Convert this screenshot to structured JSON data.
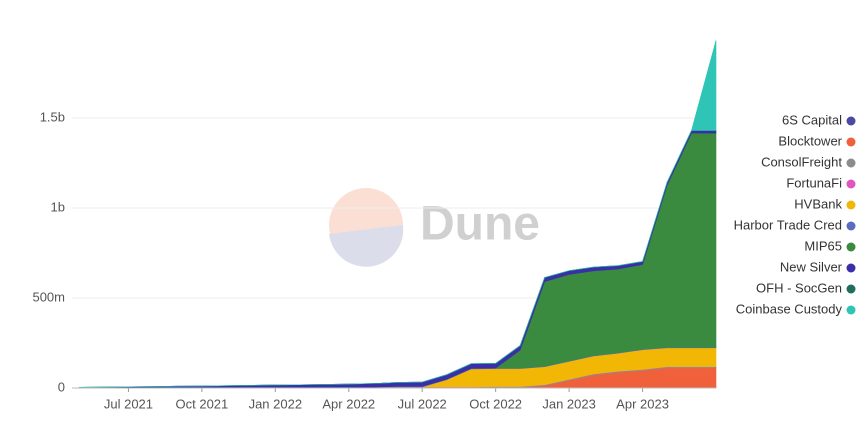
{
  "chart_data": {
    "type": "stacked-area",
    "watermark": "Dune",
    "x": [
      "2021-05",
      "2021-06",
      "2021-07",
      "2021-08",
      "2021-09",
      "2021-10",
      "2021-11",
      "2021-12",
      "2022-01",
      "2022-02",
      "2022-03",
      "2022-04",
      "2022-05",
      "2022-06",
      "2022-07",
      "2022-08",
      "2022-09",
      "2022-10",
      "2022-11",
      "2022-12",
      "2023-01",
      "2023-02",
      "2023-03",
      "2023-04",
      "2023-05",
      "2023-06",
      "2023-07"
    ],
    "xlim": [
      "2021-04",
      "2023-07"
    ],
    "xticks": [
      {
        "value": "2021-07",
        "label": "Jul 2021"
      },
      {
        "value": "2021-10",
        "label": "Oct 2021"
      },
      {
        "value": "2022-01",
        "label": "Jan 2022"
      },
      {
        "value": "2022-04",
        "label": "Apr 2022"
      },
      {
        "value": "2022-07",
        "label": "Jul 2022"
      },
      {
        "value": "2022-10",
        "label": "Oct 2022"
      },
      {
        "value": "2023-01",
        "label": "Jan 2023"
      },
      {
        "value": "2023-04",
        "label": "Apr 2023"
      }
    ],
    "ylim": [
      0,
      2000000000
    ],
    "yticks": [
      0,
      {
        "value": 500000000,
        "label": "500m"
      },
      {
        "value": 1000000000,
        "label": "1b"
      },
      {
        "value": 1500000000,
        "label": "1.5b"
      }
    ],
    "grid": true,
    "legend": "right",
    "series": [
      {
        "name": "6S Capital",
        "color": "#4b4aa3",
        "values": [
          0,
          0,
          0,
          0,
          0,
          0,
          0,
          0,
          0,
          0,
          0,
          0,
          0,
          0,
          0,
          0,
          0,
          2000000,
          2000000,
          2000000,
          2000000,
          2000000,
          2000000,
          2000000,
          2000000,
          2000000,
          2000000
        ]
      },
      {
        "name": "Blocktower",
        "color": "#f0603a",
        "values": [
          0,
          0,
          0,
          0,
          0,
          0,
          0,
          0,
          0,
          0,
          0,
          0,
          0,
          0,
          0,
          0,
          0,
          0,
          0,
          10000000,
          40000000,
          70000000,
          85000000,
          95000000,
          110000000,
          110000000,
          110000000
        ]
      },
      {
        "name": "ConsolFreight",
        "color": "#8c8c8c",
        "values": [
          2000000,
          2000000,
          3000000,
          3000000,
          4000000,
          4000000,
          5000000,
          5000000,
          5000000,
          5000000,
          5000000,
          5000000,
          5000000,
          5000000,
          5000000,
          5000000,
          5000000,
          5000000,
          5000000,
          5000000,
          5000000,
          5000000,
          5000000,
          5000000,
          5000000,
          5000000,
          5000000
        ]
      },
      {
        "name": "FortunaFi",
        "color": "#e055c0",
        "values": [
          0,
          0,
          0,
          0,
          0,
          0,
          0,
          0,
          0,
          0,
          0,
          0,
          0,
          1000000,
          1000000,
          1000000,
          1000000,
          1000000,
          1000000,
          1000000,
          1000000,
          1000000,
          1000000,
          1000000,
          1000000,
          1000000,
          1000000
        ]
      },
      {
        "name": "HVBank",
        "color": "#f2b705",
        "values": [
          0,
          0,
          0,
          0,
          0,
          0,
          0,
          0,
          0,
          0,
          0,
          0,
          0,
          0,
          0,
          40000000,
          100000000,
          100000000,
          100000000,
          100000000,
          100000000,
          100000000,
          100000000,
          110000000,
          105000000,
          105000000,
          105000000
        ]
      },
      {
        "name": "Harbor Trade Cred",
        "color": "#5b6bc0",
        "values": [
          0,
          0,
          0,
          0,
          0,
          0,
          0,
          0,
          0,
          0,
          0,
          0,
          0,
          3000000,
          3000000,
          3000000,
          3000000,
          3000000,
          3000000,
          3000000,
          3000000,
          3000000,
          3000000,
          3000000,
          3000000,
          3000000,
          3000000
        ]
      },
      {
        "name": "MIP65",
        "color": "#3a8a40",
        "values": [
          0,
          0,
          0,
          0,
          0,
          0,
          0,
          0,
          0,
          0,
          0,
          0,
          0,
          0,
          0,
          0,
          0,
          0,
          100000000,
          470000000,
          480000000,
          470000000,
          465000000,
          470000000,
          900000000,
          1190000000,
          1190000000
        ]
      },
      {
        "name": "New Silver",
        "color": "#3a2fa8",
        "values": [
          2000000,
          3000000,
          4000000,
          5000000,
          6000000,
          7000000,
          8000000,
          10000000,
          12000000,
          13000000,
          15000000,
          17000000,
          20000000,
          22000000,
          24000000,
          25000000,
          26000000,
          25000000,
          24000000,
          22000000,
          20000000,
          20000000,
          18000000,
          16000000,
          15000000,
          14000000,
          14000000
        ]
      },
      {
        "name": "OFH - SocGen",
        "color": "#1f6f5a",
        "values": [
          0,
          0,
          0,
          0,
          0,
          0,
          0,
          0,
          0,
          0,
          0,
          0,
          0,
          0,
          0,
          0,
          0,
          1000000,
          1000000,
          1000000,
          1000000,
          1000000,
          1000000,
          1000000,
          1000000,
          1000000,
          1000000
        ]
      },
      {
        "name": "Coinbase Custody",
        "color": "#2ec4b6",
        "values": [
          0,
          0,
          0,
          0,
          0,
          0,
          0,
          0,
          0,
          0,
          0,
          0,
          0,
          0,
          0,
          0,
          0,
          0,
          0,
          0,
          0,
          0,
          0,
          0,
          0,
          0,
          500000000
        ]
      }
    ]
  }
}
